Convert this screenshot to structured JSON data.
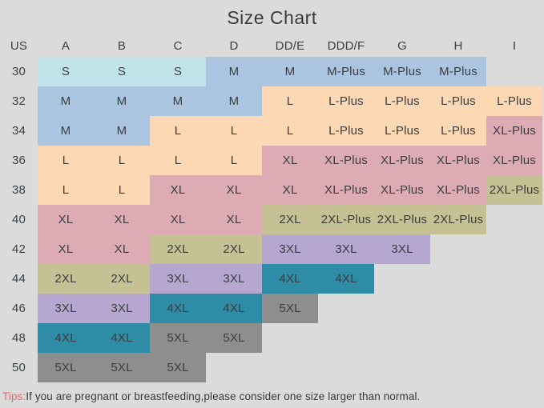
{
  "title": "Size Chart",
  "palette": {
    "cyan": "#c0e3ea",
    "blue": "#abc4e0",
    "peach": "#fcd8b4",
    "pink": "#dcabb4",
    "tan": "#c6c095",
    "purple": "#b5a7d0",
    "teal": "#2e8ca6",
    "gray": "#8e8e8e"
  },
  "text_color": "#3a3e41",
  "background_color": "#dbdbdb",
  "tips": {
    "prefix": "Tips:",
    "text": "If you are pregnant or breastfeeding,please consider one size larger than normal."
  },
  "chart_data": {
    "type": "table",
    "title": "Size Chart",
    "columns": [
      "US",
      "A",
      "B",
      "C",
      "D",
      "DD/E",
      "DDD/F",
      "G",
      "H",
      "I"
    ],
    "rows": [
      {
        "us": "30",
        "cells": [
          {
            "label": "S",
            "color": "cyan"
          },
          {
            "label": "S",
            "color": "cyan"
          },
          {
            "label": "S",
            "color": "cyan"
          },
          {
            "label": "M",
            "color": "blue"
          },
          {
            "label": "M",
            "color": "blue"
          },
          {
            "label": "M-Plus",
            "color": "blue"
          },
          {
            "label": "M-Plus",
            "color": "blue"
          },
          {
            "label": "M-Plus",
            "color": "blue"
          },
          {
            "label": "",
            "color": null
          }
        ]
      },
      {
        "us": "32",
        "cells": [
          {
            "label": "M",
            "color": "blue"
          },
          {
            "label": "M",
            "color": "blue"
          },
          {
            "label": "M",
            "color": "blue"
          },
          {
            "label": "M",
            "color": "blue"
          },
          {
            "label": "L",
            "color": "peach"
          },
          {
            "label": "L-Plus",
            "color": "peach"
          },
          {
            "label": "L-Plus",
            "color": "peach"
          },
          {
            "label": "L-Plus",
            "color": "peach"
          },
          {
            "label": "L-Plus",
            "color": "peach"
          }
        ]
      },
      {
        "us": "34",
        "cells": [
          {
            "label": "M",
            "color": "blue"
          },
          {
            "label": "M",
            "color": "blue"
          },
          {
            "label": "L",
            "color": "peach"
          },
          {
            "label": "L",
            "color": "peach"
          },
          {
            "label": "L",
            "color": "peach"
          },
          {
            "label": "L-Plus",
            "color": "peach"
          },
          {
            "label": "L-Plus",
            "color": "peach"
          },
          {
            "label": "L-Plus",
            "color": "peach"
          },
          {
            "label": "XL-Plus",
            "color": "pink"
          }
        ]
      },
      {
        "us": "36",
        "cells": [
          {
            "label": "L",
            "color": "peach"
          },
          {
            "label": "L",
            "color": "peach"
          },
          {
            "label": "L",
            "color": "peach"
          },
          {
            "label": "L",
            "color": "peach"
          },
          {
            "label": "XL",
            "color": "pink"
          },
          {
            "label": "XL-Plus",
            "color": "pink"
          },
          {
            "label": "XL-Plus",
            "color": "pink"
          },
          {
            "label": "XL-Plus",
            "color": "pink"
          },
          {
            "label": "XL-Plus",
            "color": "pink"
          }
        ]
      },
      {
        "us": "38",
        "cells": [
          {
            "label": "L",
            "color": "peach"
          },
          {
            "label": "L",
            "color": "peach"
          },
          {
            "label": "XL",
            "color": "pink"
          },
          {
            "label": "XL",
            "color": "pink"
          },
          {
            "label": "XL",
            "color": "pink"
          },
          {
            "label": "XL-Plus",
            "color": "pink"
          },
          {
            "label": "XL-Plus",
            "color": "pink"
          },
          {
            "label": "XL-Plus",
            "color": "pink"
          },
          {
            "label": "2XL-Plus",
            "color": "tan"
          }
        ]
      },
      {
        "us": "40",
        "cells": [
          {
            "label": "XL",
            "color": "pink"
          },
          {
            "label": "XL",
            "color": "pink"
          },
          {
            "label": "XL",
            "color": "pink"
          },
          {
            "label": "XL",
            "color": "pink"
          },
          {
            "label": "2XL",
            "color": "tan"
          },
          {
            "label": "2XL-Plus",
            "color": "tan"
          },
          {
            "label": "2XL-Plus",
            "color": "tan"
          },
          {
            "label": "2XL-Plus",
            "color": "tan"
          },
          {
            "label": "",
            "color": null
          }
        ]
      },
      {
        "us": "42",
        "cells": [
          {
            "label": "XL",
            "color": "pink"
          },
          {
            "label": "XL",
            "color": "pink"
          },
          {
            "label": "2XL",
            "color": "tan"
          },
          {
            "label": "2XL",
            "color": "tan"
          },
          {
            "label": "3XL",
            "color": "purple"
          },
          {
            "label": "3XL",
            "color": "purple"
          },
          {
            "label": "3XL",
            "color": "purple"
          },
          {
            "label": "",
            "color": null
          },
          {
            "label": "",
            "color": null
          }
        ]
      },
      {
        "us": "44",
        "cells": [
          {
            "label": "2XL",
            "color": "tan"
          },
          {
            "label": "2XL",
            "color": "tan"
          },
          {
            "label": "3XL",
            "color": "purple"
          },
          {
            "label": "3XL",
            "color": "purple"
          },
          {
            "label": "4XL",
            "color": "teal"
          },
          {
            "label": "4XL",
            "color": "teal"
          },
          {
            "label": "",
            "color": null
          },
          {
            "label": "",
            "color": null
          },
          {
            "label": "",
            "color": null
          }
        ]
      },
      {
        "us": "46",
        "cells": [
          {
            "label": "3XL",
            "color": "purple"
          },
          {
            "label": "3XL",
            "color": "purple"
          },
          {
            "label": "4XL",
            "color": "teal"
          },
          {
            "label": "4XL",
            "color": "teal"
          },
          {
            "label": "5XL",
            "color": "gray"
          },
          {
            "label": "",
            "color": null
          },
          {
            "label": "",
            "color": null
          },
          {
            "label": "",
            "color": null
          },
          {
            "label": "",
            "color": null
          }
        ]
      },
      {
        "us": "48",
        "cells": [
          {
            "label": "4XL",
            "color": "teal"
          },
          {
            "label": "4XL",
            "color": "teal"
          },
          {
            "label": "5XL",
            "color": "gray"
          },
          {
            "label": "5XL",
            "color": "gray"
          },
          {
            "label": "",
            "color": null
          },
          {
            "label": "",
            "color": null
          },
          {
            "label": "",
            "color": null
          },
          {
            "label": "",
            "color": null
          },
          {
            "label": "",
            "color": null
          }
        ]
      },
      {
        "us": "50",
        "cells": [
          {
            "label": "5XL",
            "color": "gray"
          },
          {
            "label": "5XL",
            "color": "gray"
          },
          {
            "label": "5XL",
            "color": "gray"
          },
          {
            "label": "",
            "color": null
          },
          {
            "label": "",
            "color": null
          },
          {
            "label": "",
            "color": null
          },
          {
            "label": "",
            "color": null
          },
          {
            "label": "",
            "color": null
          },
          {
            "label": "",
            "color": null
          }
        ]
      }
    ]
  }
}
